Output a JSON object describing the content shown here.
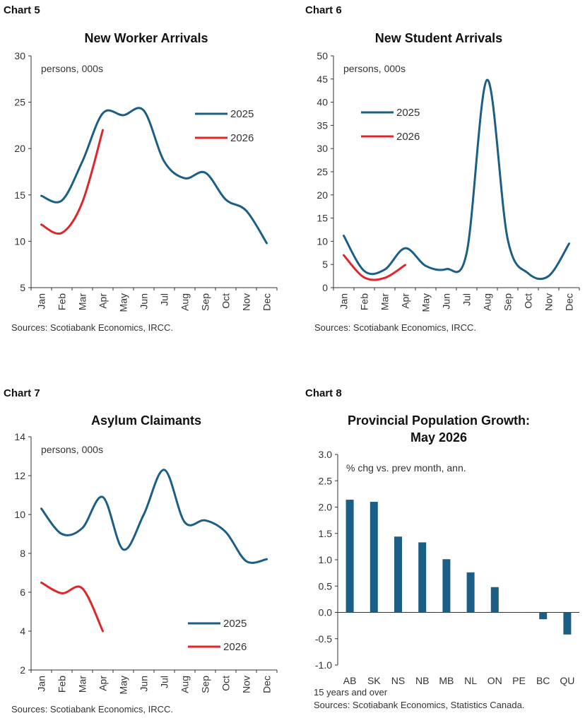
{
  "chart_data": [
    {
      "id": "chart5",
      "type": "line",
      "chart_number": "Chart 5",
      "title": "New Worker Arrivals",
      "unit_label": "persons, 000s",
      "categories": [
        "Jan",
        "Feb",
        "Mar",
        "Apr",
        "May",
        "Jun",
        "Jul",
        "Aug",
        "Sep",
        "Oct",
        "Nov",
        "Dec"
      ],
      "ylim": [
        5,
        30
      ],
      "yticks": [
        "5",
        "10",
        "15",
        "20",
        "25",
        "30"
      ],
      "series": [
        {
          "name": "2025",
          "color": "#1b5e86",
          "values": [
            14.9,
            14.4,
            18.6,
            23.8,
            23.6,
            24.1,
            18.6,
            16.8,
            17.4,
            14.5,
            13.3,
            9.8
          ]
        },
        {
          "name": "2026",
          "color": "#e0252b",
          "values": [
            11.8,
            10.9,
            14.2,
            22.0,
            null,
            null,
            null,
            null,
            null,
            null,
            null,
            null
          ]
        }
      ],
      "source": "Sources: Scotiabank Economics, IRCC.",
      "grid": false,
      "legend": "right"
    },
    {
      "id": "chart6",
      "type": "line",
      "chart_number": "Chart 6",
      "title": "New Student Arrivals",
      "unit_label": "persons, 000s",
      "categories": [
        "Jan",
        "Feb",
        "Mar",
        "Apr",
        "May",
        "Jun",
        "Jul",
        "Aug",
        "Sep",
        "Oct",
        "Nov",
        "Dec"
      ],
      "ylim": [
        0,
        50
      ],
      "yticks": [
        "0",
        "5",
        "10",
        "15",
        "20",
        "25",
        "30",
        "35",
        "40",
        "45",
        "50"
      ],
      "series": [
        {
          "name": "2025",
          "color": "#1b5e86",
          "values": [
            11.2,
            3.6,
            3.9,
            8.5,
            4.7,
            4.0,
            7.5,
            44.8,
            10.5,
            3.1,
            2.5,
            9.5
          ]
        },
        {
          "name": "2026",
          "color": "#e0252b",
          "values": [
            7.0,
            2.2,
            2.1,
            4.9,
            null,
            null,
            null,
            null,
            null,
            null,
            null,
            null
          ]
        }
      ],
      "source": "Sources: Scotiabank Economics, IRCC.",
      "grid": false,
      "legend": "top-left"
    },
    {
      "id": "chart7",
      "type": "line",
      "chart_number": "Chart 7",
      "title": "Asylum Claimants",
      "unit_label": "persons, 000s",
      "categories": [
        "Jan",
        "Feb",
        "Mar",
        "Apr",
        "May",
        "Jun",
        "Jul",
        "Aug",
        "Sep",
        "Oct",
        "Nov",
        "Dec"
      ],
      "ylim": [
        2,
        14
      ],
      "yticks": [
        "2",
        "4",
        "6",
        "8",
        "10",
        "12",
        "14"
      ],
      "series": [
        {
          "name": "2025",
          "color": "#1b5e86",
          "values": [
            10.3,
            9.0,
            9.3,
            10.9,
            8.2,
            10.0,
            12.3,
            9.6,
            9.7,
            9.1,
            7.6,
            7.7
          ]
        },
        {
          "name": "2026",
          "color": "#e0252b",
          "values": [
            6.5,
            5.95,
            6.2,
            4.0,
            null,
            null,
            null,
            null,
            null,
            null,
            null,
            null
          ]
        }
      ],
      "source": "Sources: Scotiabank Economics, IRCC.",
      "grid": false,
      "legend": "bottom-right"
    },
    {
      "id": "chart8",
      "type": "bar",
      "chart_number": "Chart 8",
      "title": "Provincial Population Growth: May 2026",
      "title_lines": [
        "Provincial Population Growth:",
        "May 2026"
      ],
      "unit_label": "% chg vs. prev month, ann.",
      "categories": [
        "AB",
        "SK",
        "NS",
        "NB",
        "MB",
        "NL",
        "ON",
        "PE",
        "BC",
        "QU"
      ],
      "values": [
        2.14,
        2.1,
        1.44,
        1.33,
        1.01,
        0.76,
        0.48,
        0.0,
        -0.13,
        -0.42
      ],
      "color": "#1b5e86",
      "ylim": [
        -1.0,
        3.0
      ],
      "yticks": [
        "-1.0",
        "-0.5",
        "0.0",
        "0.5",
        "1.0",
        "1.5",
        "2.0",
        "2.5",
        "3.0"
      ],
      "footnote": "15 years and over",
      "source": "Sources: Scotiabank Economics, Statistics Canada.",
      "grid": false
    }
  ]
}
